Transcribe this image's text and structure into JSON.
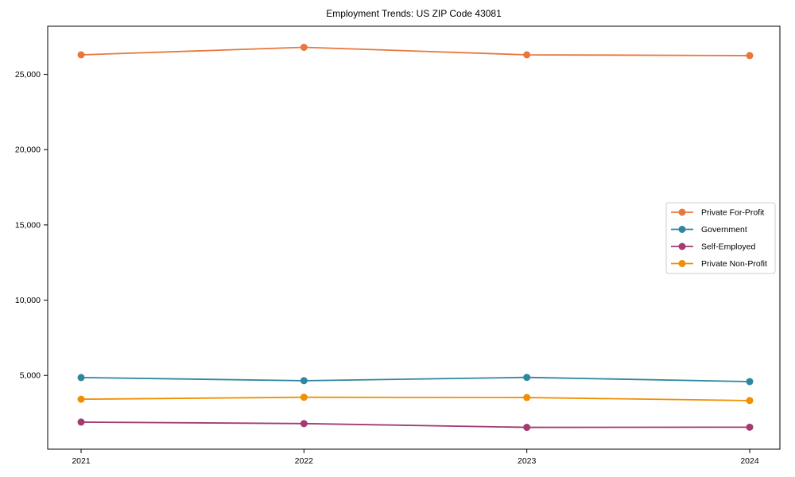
{
  "chart_data": {
    "type": "line",
    "title": "Employment Trends: US ZIP Code 43081",
    "xlabel": "",
    "ylabel": "",
    "categories": [
      "2021",
      "2022",
      "2023",
      "2024"
    ],
    "x": [
      2021,
      2022,
      2023,
      2024
    ],
    "series": [
      {
        "name": "Private For-Profit",
        "color": "#E8773D",
        "values": [
          26300,
          26800,
          26300,
          26250
        ]
      },
      {
        "name": "Government",
        "color": "#2E86A0",
        "values": [
          4860,
          4650,
          4870,
          4590
        ]
      },
      {
        "name": "Self-Employed",
        "color": "#A23B72",
        "values": [
          1900,
          1800,
          1550,
          1560
        ]
      },
      {
        "name": "Private Non-Profit",
        "color": "#F18F01",
        "values": [
          3420,
          3550,
          3530,
          3330
        ]
      }
    ],
    "ylim": [
      100,
      28200
    ],
    "yticks": [
      5000,
      10000,
      15000,
      20000,
      25000
    ],
    "ytick_labels": [
      "5,000",
      "10,000",
      "15,000",
      "20,000",
      "25,000"
    ],
    "grid": false,
    "marker": "circle",
    "legend_position": "center-right",
    "axis_color": "#000000",
    "tick_label_color": "#000000",
    "legend_border_color": "#cccccc",
    "legend_background": "#ffffff"
  }
}
